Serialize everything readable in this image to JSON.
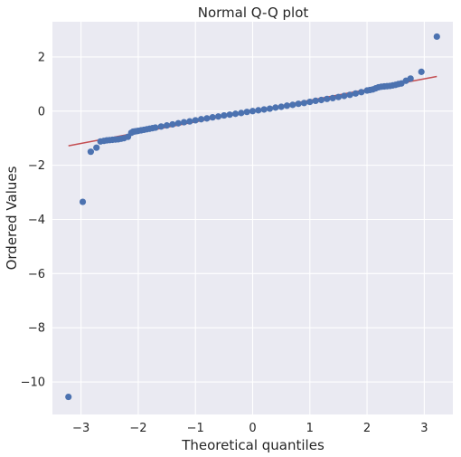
{
  "chart_data": {
    "type": "scatter",
    "title": "Normal Q-Q plot",
    "xlabel": "Theoretical quantiles",
    "ylabel": "Ordered Values",
    "xlim": [
      -3.5,
      3.5
    ],
    "ylim": [
      -11.2,
      3.3
    ],
    "xticks": [
      {
        "value": -3,
        "label": "−3"
      },
      {
        "value": -2,
        "label": "−2"
      },
      {
        "value": -1,
        "label": "−1"
      },
      {
        "value": 0,
        "label": "0"
      },
      {
        "value": 1,
        "label": "1"
      },
      {
        "value": 2,
        "label": "2"
      },
      {
        "value": 3,
        "label": "3"
      }
    ],
    "yticks": [
      {
        "value": -10,
        "label": "−10"
      },
      {
        "value": -8,
        "label": "−8"
      },
      {
        "value": -6,
        "label": "−6"
      },
      {
        "value": -4,
        "label": "−4"
      },
      {
        "value": -2,
        "label": "−2"
      },
      {
        "value": 0,
        "label": "0"
      },
      {
        "value": 2,
        "label": "2"
      }
    ],
    "grid": true,
    "colors": {
      "background": "#EAEAF2",
      "grid": "#FFFFFF",
      "points": "#4C72B0",
      "fit_line": "#C44E52"
    },
    "fit_line": {
      "x": [
        -3.22,
        3.22
      ],
      "y": [
        -1.28,
        1.28
      ]
    },
    "points": {
      "x": [
        -3.22,
        -2.97,
        -2.83,
        -2.73,
        -2.66,
        -2.6,
        -2.55,
        -2.5,
        -2.45,
        -2.4,
        -2.35,
        -2.3,
        -2.25,
        -2.18,
        -2.12,
        -2.09,
        -2.06,
        -2.03,
        -2.0,
        -1.95,
        -1.9,
        -1.85,
        -1.8,
        -1.75,
        -1.7,
        -1.6,
        -1.5,
        -1.4,
        -1.3,
        -1.2,
        -1.1,
        -1.0,
        -0.9,
        -0.8,
        -0.7,
        -0.6,
        -0.5,
        -0.4,
        -0.3,
        -0.2,
        -0.1,
        0.0,
        0.1,
        0.2,
        0.3,
        0.4,
        0.5,
        0.6,
        0.7,
        0.8,
        0.9,
        1.0,
        1.1,
        1.2,
        1.3,
        1.4,
        1.5,
        1.6,
        1.7,
        1.8,
        1.9,
        2.0,
        2.05,
        2.1,
        2.15,
        2.2,
        2.25,
        2.3,
        2.35,
        2.4,
        2.45,
        2.5,
        2.55,
        2.6,
        2.68,
        2.76,
        2.95,
        3.22
      ],
      "y": [
        -10.55,
        -3.35,
        -1.5,
        -1.35,
        -1.12,
        -1.1,
        -1.08,
        -1.07,
        -1.06,
        -1.05,
        -1.04,
        -1.02,
        -1.0,
        -0.95,
        -0.8,
        -0.76,
        -0.75,
        -0.74,
        -0.73,
        -0.71,
        -0.69,
        -0.67,
        -0.65,
        -0.63,
        -0.61,
        -0.57,
        -0.53,
        -0.49,
        -0.45,
        -0.41,
        -0.38,
        -0.34,
        -0.3,
        -0.27,
        -0.23,
        -0.2,
        -0.16,
        -0.13,
        -0.1,
        -0.07,
        -0.03,
        0.0,
        0.03,
        0.06,
        0.09,
        0.13,
        0.16,
        0.2,
        0.23,
        0.27,
        0.3,
        0.34,
        0.38,
        0.41,
        0.45,
        0.48,
        0.52,
        0.56,
        0.6,
        0.65,
        0.7,
        0.76,
        0.78,
        0.8,
        0.84,
        0.88,
        0.9,
        0.91,
        0.92,
        0.93,
        0.95,
        0.97,
        1.0,
        1.02,
        1.12,
        1.2,
        1.45,
        2.75
      ]
    }
  }
}
